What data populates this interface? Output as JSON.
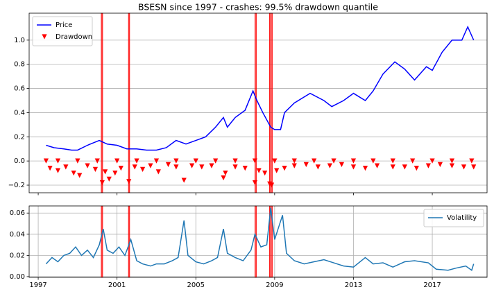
{
  "chart_data": [
    {
      "type": "line",
      "title": "BSESN since 1997 - crashes: 99.5% drawdown quantile",
      "xlim": [
        1996.54,
        2019.78
      ],
      "xticks": [
        1997,
        2001,
        2005,
        2009,
        2013,
        2017
      ],
      "show_xticklabels": false,
      "ylim": [
        -0.263,
        1.223
      ],
      "yticks": [
        {
          "value": -0.2,
          "label": "−0.2"
        },
        {
          "value": 0,
          "label": "0.0"
        },
        {
          "value": 0.2,
          "label": "0.2"
        },
        {
          "value": 0.4,
          "label": "0.4"
        },
        {
          "value": 0.6,
          "label": "0.6"
        },
        {
          "value": 0.8,
          "label": "0.8"
        },
        {
          "value": 1.0,
          "label": "1.0"
        }
      ],
      "grid": "y",
      "legend": "upper left",
      "crashes": [
        [
          2000.2,
          2000.27
        ],
        [
          2001.58,
          2001.64
        ],
        [
          2008.0,
          2008.07
        ],
        [
          2008.74,
          2008.88
        ]
      ],
      "crash_color": "#ff0000",
      "series": [
        {
          "name": "Price",
          "color": "#0000ff",
          "kind": "line",
          "x": [
            1997.4,
            1997.8,
            1998.3,
            1998.7,
            1999.0,
            1999.5,
            2000.1,
            2000.5,
            2001.0,
            2001.5,
            2002.0,
            2002.5,
            2003.0,
            2003.5,
            2004.0,
            2004.5,
            2005.0,
            2005.5,
            2006.0,
            2006.4,
            2006.6,
            2007.0,
            2007.5,
            2007.9,
            2008.1,
            2008.4,
            2008.8,
            2009.0,
            2009.3,
            2009.5,
            2010.0,
            2010.8,
            2011.5,
            2011.9,
            2012.5,
            2013.0,
            2013.6,
            2014.0,
            2014.5,
            2015.1,
            2015.6,
            2016.1,
            2016.7,
            2017.0,
            2017.5,
            2018.0,
            2018.5,
            2018.8,
            2019.1
          ],
          "values": [
            0.13,
            0.11,
            0.1,
            0.09,
            0.09,
            0.13,
            0.17,
            0.14,
            0.13,
            0.1,
            0.1,
            0.09,
            0.09,
            0.11,
            0.17,
            0.14,
            0.17,
            0.2,
            0.28,
            0.36,
            0.28,
            0.36,
            0.42,
            0.58,
            0.5,
            0.4,
            0.28,
            0.26,
            0.26,
            0.4,
            0.48,
            0.56,
            0.5,
            0.45,
            0.5,
            0.56,
            0.5,
            0.58,
            0.72,
            0.82,
            0.76,
            0.67,
            0.78,
            0.75,
            0.9,
            1.0,
            1.0,
            1.11,
            1.0
          ]
        },
        {
          "name": "Drawdown",
          "color": "#ff0000",
          "kind": "scatter",
          "x": [
            1997.4,
            1997.6,
            1998.0,
            1998.4,
            1998.8,
            1999.1,
            1999.5,
            1999.9,
            2000.25,
            2000.4,
            2000.6,
            2000.9,
            2001.2,
            2001.6,
            2001.9,
            2002.3,
            2002.7,
            2003.1,
            2003.6,
            2004.0,
            2004.4,
            2004.8,
            2005.3,
            2005.8,
            2006.4,
            2006.5,
            2007.0,
            2007.5,
            2008.0,
            2008.2,
            2008.5,
            2008.75,
            2008.85,
            2009.1,
            2009.5,
            2010.0,
            2010.6,
            2011.2,
            2011.8,
            2012.4,
            2013.0,
            2013.6,
            2014.2,
            2015.0,
            2015.6,
            2016.2,
            2016.8,
            2017.4,
            2018.0,
            2018.6,
            2019.1,
            1998,
            1999,
            2000,
            2001,
            2002,
            2003,
            2004,
            2005,
            2006,
            2007,
            2008,
            2009,
            2010,
            2011,
            2012,
            2013,
            2014,
            2015,
            2016,
            2017,
            2018,
            2019
          ],
          "values": [
            0,
            -0.06,
            -0.08,
            -0.05,
            -0.1,
            -0.12,
            -0.04,
            -0.07,
            -0.18,
            -0.09,
            -0.15,
            -0.1,
            -0.06,
            -0.17,
            -0.05,
            -0.07,
            -0.04,
            -0.09,
            -0.03,
            -0.05,
            -0.16,
            -0.04,
            -0.05,
            -0.04,
            -0.14,
            -0.1,
            -0.05,
            -0.06,
            -0.18,
            -0.08,
            -0.1,
            -0.19,
            -0.2,
            -0.08,
            -0.06,
            -0.04,
            -0.03,
            -0.05,
            -0.04,
            -0.03,
            -0.05,
            -0.06,
            -0.04,
            -0.05,
            -0.05,
            -0.06,
            -0.04,
            -0.03,
            -0.04,
            -0.05,
            -0.05,
            0,
            0,
            0,
            0,
            0,
            0,
            0,
            0,
            0,
            0,
            0,
            0,
            0,
            0,
            0,
            0,
            0,
            0,
            0,
            0,
            0,
            0
          ]
        }
      ]
    },
    {
      "type": "line",
      "xlim": [
        1996.54,
        2019.78
      ],
      "xticks": [
        1997,
        2001,
        2005,
        2009,
        2013,
        2017
      ],
      "show_xticklabels": true,
      "ylim": [
        -0.0007,
        0.0667
      ],
      "yticks": [
        {
          "value": 0,
          "label": "0.00"
        },
        {
          "value": 0.02,
          "label": "0.02"
        },
        {
          "value": 0.04,
          "label": "0.04"
        },
        {
          "value": 0.06,
          "label": "0.06"
        }
      ],
      "grid": "both",
      "legend": "upper right",
      "crashes": [
        [
          2000.2,
          2000.27
        ],
        [
          2001.58,
          2001.64
        ],
        [
          2008.0,
          2008.07
        ],
        [
          2008.74,
          2008.88
        ]
      ],
      "crash_color": "#ff0000",
      "series": [
        {
          "name": "Volatility",
          "color": "#1f77b4",
          "kind": "line",
          "x": [
            1997.4,
            1997.7,
            1998.0,
            1998.3,
            1998.6,
            1998.9,
            1999.2,
            1999.5,
            1999.8,
            2000.1,
            2000.3,
            2000.5,
            2000.8,
            2001.1,
            2001.4,
            2001.7,
            2002.0,
            2002.3,
            2002.7,
            2003.0,
            2003.4,
            2003.8,
            2004.1,
            2004.4,
            2004.6,
            2005.0,
            2005.4,
            2005.8,
            2006.1,
            2006.4,
            2006.6,
            2007.0,
            2007.4,
            2007.8,
            2008.0,
            2008.3,
            2008.6,
            2008.8,
            2009.0,
            2009.4,
            2009.6,
            2010.0,
            2010.5,
            2011.0,
            2011.5,
            2012.0,
            2012.5,
            2013.0,
            2013.6,
            2014.0,
            2014.5,
            2015.0,
            2015.6,
            2016.1,
            2016.8,
            2017.2,
            2017.8,
            2018.2,
            2018.7,
            2019.0,
            2019.1
          ],
          "values": [
            0.012,
            0.018,
            0.014,
            0.02,
            0.022,
            0.028,
            0.02,
            0.025,
            0.018,
            0.03,
            0.045,
            0.025,
            0.022,
            0.028,
            0.02,
            0.035,
            0.015,
            0.012,
            0.01,
            0.012,
            0.012,
            0.015,
            0.018,
            0.053,
            0.02,
            0.014,
            0.012,
            0.015,
            0.018,
            0.045,
            0.022,
            0.018,
            0.015,
            0.025,
            0.04,
            0.028,
            0.03,
            0.065,
            0.035,
            0.058,
            0.022,
            0.015,
            0.012,
            0.014,
            0.016,
            0.013,
            0.01,
            0.009,
            0.018,
            0.012,
            0.013,
            0.009,
            0.014,
            0.015,
            0.013,
            0.007,
            0.006,
            0.008,
            0.01,
            0.006,
            0.012
          ]
        }
      ]
    }
  ]
}
